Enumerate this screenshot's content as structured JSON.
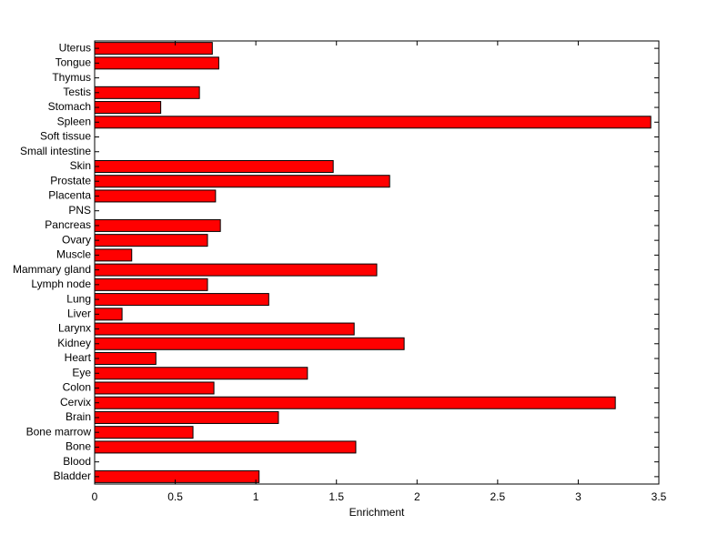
{
  "chart_data": {
    "type": "bar",
    "orientation": "horizontal",
    "title": "",
    "xlabel": "Enrichment",
    "ylabel": "",
    "xlim": [
      0,
      3.5
    ],
    "xticks": [
      0,
      0.5,
      1,
      1.5,
      2,
      2.5,
      3,
      3.5
    ],
    "xtick_labels": [
      "0",
      "0.5",
      "1",
      "1.5",
      "2",
      "2.5",
      "3",
      "3.5"
    ],
    "grid": false,
    "legend": "none",
    "bar_color": "#ff0000",
    "categories": [
      "Bladder",
      "Blood",
      "Bone",
      "Bone marrow",
      "Brain",
      "Cervix",
      "Colon",
      "Eye",
      "Heart",
      "Kidney",
      "Larynx",
      "Liver",
      "Lung",
      "Lymph node",
      "Mammary gland",
      "Muscle",
      "Ovary",
      "Pancreas",
      "PNS",
      "Placenta",
      "Prostate",
      "Skin",
      "Small intestine",
      "Soft tissue",
      "Spleen",
      "Stomach",
      "Testis",
      "Thymus",
      "Tongue",
      "Uterus"
    ],
    "values": [
      1.02,
      0,
      1.62,
      0.61,
      1.14,
      3.23,
      0.74,
      1.32,
      0.38,
      1.92,
      1.61,
      0.17,
      1.08,
      0.7,
      1.75,
      0.23,
      0.7,
      0.78,
      0,
      0.75,
      1.83,
      1.48,
      0,
      0,
      3.45,
      0.41,
      0.65,
      0,
      0.77,
      0.73
    ]
  }
}
